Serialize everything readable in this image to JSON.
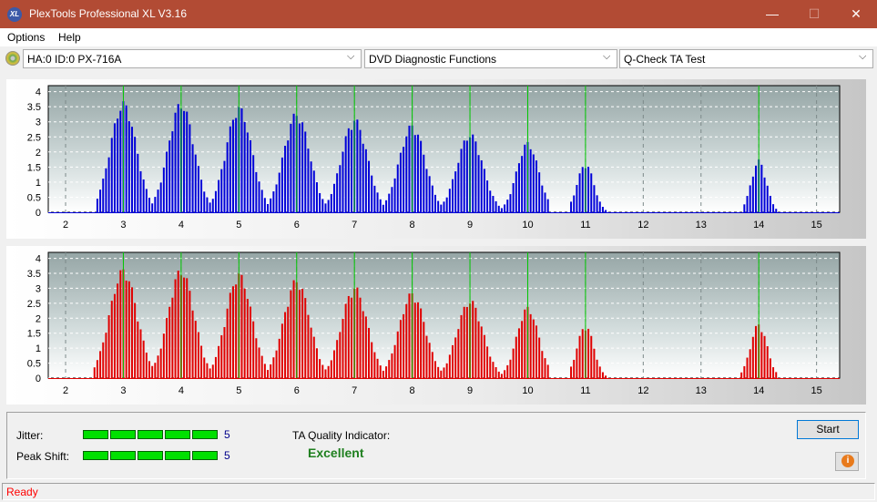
{
  "window": {
    "title": "PlexTools Professional XL V3.16",
    "app_icon": "XL",
    "minimize": "—",
    "maximize": "☐",
    "close": "✕"
  },
  "menu": {
    "options": "Options",
    "help": "Help"
  },
  "toolbar": {
    "drive": "HA:0 ID:0  PX-716A",
    "function": "DVD Diagnostic Functions",
    "test": "Q-Check TA Test",
    "arrow": "⌵"
  },
  "chart_data": [
    {
      "type": "bar",
      "name": "top",
      "color": "#0000d8",
      "y_ticks": [
        "0",
        "0.5",
        "1",
        "1.5",
        "2",
        "2.5",
        "3",
        "3.5",
        "4"
      ],
      "x_ticks": [
        "2",
        "3",
        "4",
        "5",
        "6",
        "7",
        "8",
        "9",
        "10",
        "11",
        "12",
        "13",
        "14",
        "15"
      ],
      "xlim": [
        1.7,
        15.4
      ],
      "ylim": [
        0,
        4.2
      ],
      "marker_lines": [
        3,
        4,
        5,
        6,
        7,
        8,
        9,
        10,
        11,
        14
      ],
      "peaks": [
        {
          "center": 3,
          "height": 3.7,
          "left": 2.55,
          "right": 3.5
        },
        {
          "center": 4,
          "height": 3.7,
          "left": 3.55,
          "right": 4.5
        },
        {
          "center": 5,
          "height": 3.55,
          "left": 4.55,
          "right": 5.5
        },
        {
          "center": 6,
          "height": 3.35,
          "left": 5.55,
          "right": 6.5
        },
        {
          "center": 7,
          "height": 3.15,
          "left": 6.55,
          "right": 7.5
        },
        {
          "center": 8,
          "height": 2.95,
          "left": 7.55,
          "right": 8.5
        },
        {
          "center": 9,
          "height": 2.65,
          "left": 8.55,
          "right": 9.5
        },
        {
          "center": 10,
          "height": 2.35,
          "left": 9.55,
          "right": 10.35
        },
        {
          "center": 11,
          "height": 1.65,
          "left": 10.75,
          "right": 11.35
        },
        {
          "center": 14,
          "height": 1.75,
          "left": 13.75,
          "right": 14.3
        }
      ]
    },
    {
      "type": "bar",
      "name": "bottom",
      "color": "#e00000",
      "y_ticks": [
        "0",
        "0.5",
        "1",
        "1.5",
        "2",
        "2.5",
        "3",
        "3.5",
        "4"
      ],
      "x_ticks": [
        "2",
        "3",
        "4",
        "5",
        "6",
        "7",
        "8",
        "9",
        "10",
        "11",
        "12",
        "13",
        "14",
        "15"
      ],
      "xlim": [
        1.7,
        15.4
      ],
      "ylim": [
        0,
        4.2
      ],
      "marker_lines": [
        3,
        4,
        5,
        6,
        7,
        8,
        9,
        10,
        11,
        14
      ],
      "peaks": [
        {
          "center": 3,
          "height": 3.7,
          "left": 2.5,
          "right": 3.5
        },
        {
          "center": 4,
          "height": 3.7,
          "left": 3.55,
          "right": 4.5
        },
        {
          "center": 5,
          "height": 3.55,
          "left": 4.55,
          "right": 5.5
        },
        {
          "center": 6,
          "height": 3.35,
          "left": 5.55,
          "right": 6.5
        },
        {
          "center": 7,
          "height": 3.1,
          "left": 6.55,
          "right": 7.5
        },
        {
          "center": 8,
          "height": 2.9,
          "left": 7.55,
          "right": 8.5
        },
        {
          "center": 9,
          "height": 2.65,
          "left": 8.55,
          "right": 9.5
        },
        {
          "center": 10,
          "height": 2.4,
          "left": 9.55,
          "right": 10.35
        },
        {
          "center": 11,
          "height": 1.8,
          "left": 10.75,
          "right": 11.35
        },
        {
          "center": 14,
          "height": 1.85,
          "left": 13.7,
          "right": 14.3
        }
      ]
    }
  ],
  "results": {
    "jitter_label": "Jitter:",
    "jitter_value": "5",
    "jitter_level": 5,
    "peakshift_label": "Peak Shift:",
    "peakshift_value": "5",
    "peakshift_level": 5,
    "ta_label": "TA Quality Indicator:",
    "ta_value": "Excellent"
  },
  "buttons": {
    "start": "Start",
    "info": "i"
  },
  "status": {
    "text": "Ready"
  }
}
